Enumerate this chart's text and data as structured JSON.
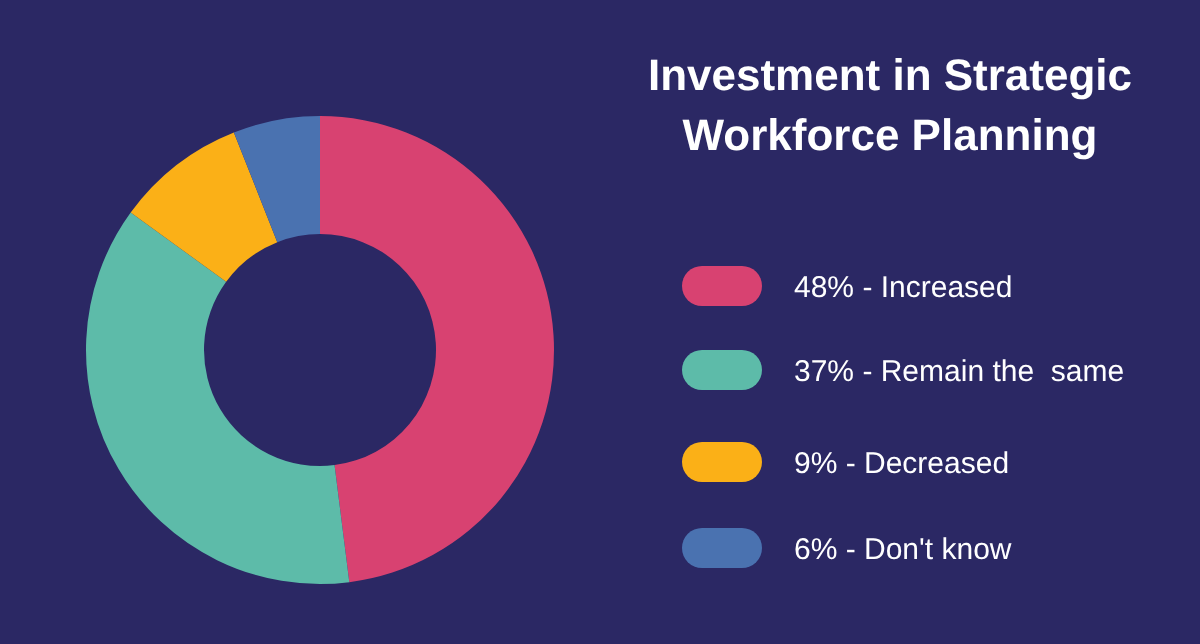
{
  "chart_data": {
    "type": "donut",
    "title": "Investment in Strategic Workforce Planning",
    "categories": [
      "48% - Increased",
      "37% - Remain the  same",
      "9% - Decreased",
      "6% - Don't know"
    ],
    "values": [
      48,
      37,
      9,
      6
    ],
    "colors": [
      "#d84271",
      "#5dbba9",
      "#fbb017",
      "#4a72b0"
    ],
    "legend": "right"
  }
}
